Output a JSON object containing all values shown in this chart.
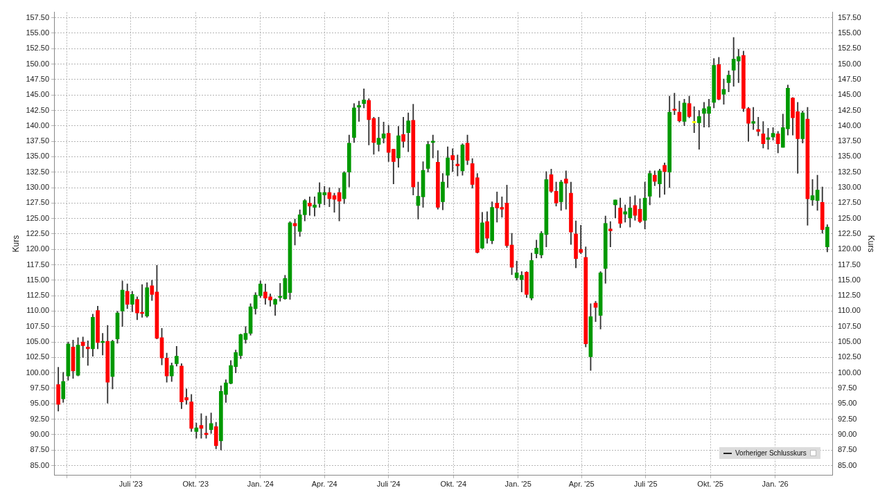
{
  "chart_data": {
    "type": "candlestick",
    "ylabel": "Kurs",
    "y2label": "Kurs",
    "x": [
      "2023-03-20",
      "2023-03-27",
      "2023-04-03",
      "2023-04-10",
      "2023-04-17",
      "2023-04-24",
      "2023-05-01",
      "2023-05-08",
      "2023-05-15",
      "2023-05-22",
      "2023-05-29",
      "2023-06-05",
      "2023-06-12",
      "2023-06-19",
      "2023-06-26",
      "2023-07-03",
      "2023-07-10",
      "2023-07-17",
      "2023-07-24",
      "2023-07-31",
      "2023-08-07",
      "2023-08-14",
      "2023-08-21",
      "2023-08-28",
      "2023-09-04",
      "2023-09-11",
      "2023-09-18",
      "2023-09-25",
      "2023-10-02",
      "2023-10-09",
      "2023-10-16",
      "2023-10-23",
      "2023-10-30",
      "2023-11-06",
      "2023-11-13",
      "2023-11-20",
      "2023-11-27",
      "2023-12-04",
      "2023-12-11",
      "2023-12-18",
      "2023-12-25",
      "2024-01-01",
      "2024-01-08",
      "2024-01-15",
      "2024-01-22",
      "2024-01-29",
      "2024-02-05",
      "2024-02-12",
      "2024-02-19",
      "2024-02-26",
      "2024-03-04",
      "2024-03-11",
      "2024-03-18",
      "2024-03-25",
      "2024-04-01",
      "2024-04-08",
      "2024-04-15",
      "2024-04-22",
      "2024-04-29",
      "2024-05-06",
      "2024-05-13",
      "2024-05-20",
      "2024-05-27",
      "2024-06-03",
      "2024-06-10",
      "2024-06-17",
      "2024-06-24",
      "2024-07-01",
      "2024-07-08",
      "2024-07-15",
      "2024-07-22",
      "2024-07-29",
      "2024-08-05",
      "2024-08-12",
      "2024-08-19",
      "2024-08-26",
      "2024-09-02",
      "2024-09-09",
      "2024-09-16",
      "2024-09-23",
      "2024-09-30",
      "2024-10-07",
      "2024-10-14",
      "2024-10-21",
      "2024-10-28",
      "2024-11-04",
      "2024-11-11",
      "2024-11-18",
      "2024-11-25",
      "2024-12-02",
      "2024-12-09",
      "2024-12-16",
      "2024-12-23",
      "2024-12-30",
      "2025-01-06",
      "2025-01-13",
      "2025-01-20",
      "2025-01-27",
      "2025-02-03",
      "2025-02-10",
      "2025-02-17",
      "2025-02-24",
      "2025-03-03",
      "2025-03-10",
      "2025-03-17",
      "2025-03-24",
      "2025-03-31",
      "2025-04-07",
      "2025-04-14",
      "2025-04-21",
      "2025-04-28",
      "2025-05-05",
      "2025-05-12",
      "2025-05-19",
      "2025-05-26",
      "2025-06-02",
      "2025-06-09",
      "2025-06-16",
      "2025-06-23",
      "2025-06-30",
      "2025-07-07",
      "2025-07-14",
      "2025-07-21",
      "2025-07-28",
      "2025-08-04",
      "2025-08-11",
      "2025-08-18",
      "2025-08-25",
      "2025-09-01",
      "2025-09-08",
      "2025-09-15",
      "2025-09-22",
      "2025-09-29",
      "2025-10-06",
      "2025-10-13",
      "2025-10-20",
      "2025-10-27",
      "2025-11-03",
      "2025-11-10",
      "2025-11-17",
      "2025-11-24",
      "2025-12-01",
      "2025-12-08",
      "2025-12-15",
      "2025-12-22",
      "2025-12-29",
      "2026-01-05",
      "2026-01-12",
      "2026-01-19",
      "2026-01-26",
      "2026-02-02",
      "2026-02-09",
      "2026-02-16",
      "2026-02-23",
      "2026-03-02",
      "2026-03-09",
      "2026-03-16"
    ],
    "ohlc": [
      [
        98.1,
        100.9,
        93.8,
        94.9
      ],
      [
        95.8,
        100.1,
        95.2,
        98.6
      ],
      [
        99.5,
        105.0,
        98.8,
        104.7
      ],
      [
        104.2,
        105.3,
        99.1,
        100.3
      ],
      [
        99.6,
        105.7,
        99.5,
        104.5
      ],
      [
        105.0,
        105.8,
        102.5,
        104.4
      ],
      [
        104.2,
        105.2,
        101.2,
        103.9
      ],
      [
        103.9,
        109.5,
        102.7,
        109.0
      ],
      [
        110.1,
        110.8,
        103.9,
        104.9
      ],
      [
        104.9,
        106.4,
        102.9,
        105.1
      ],
      [
        105.1,
        107.7,
        95.1,
        98.5
      ],
      [
        99.4,
        105.3,
        97.4,
        105.1
      ],
      [
        105.5,
        110.0,
        104.8,
        109.7
      ],
      [
        110.0,
        114.9,
        107.5,
        113.4
      ],
      [
        113.2,
        114.4,
        110.4,
        111.1
      ],
      [
        111.1,
        113.2,
        109.9,
        112.7
      ],
      [
        111.9,
        112.3,
        108.6,
        109.7
      ],
      [
        109.8,
        114.3,
        109.0,
        109.6
      ],
      [
        109.2,
        114.6,
        109.0,
        113.8
      ],
      [
        114.1,
        115.0,
        111.7,
        112.7
      ],
      [
        113.1,
        117.4,
        105.5,
        105.6
      ],
      [
        105.7,
        107.2,
        101.3,
        102.4
      ],
      [
        102.4,
        103.2,
        98.5,
        99.5
      ],
      [
        99.5,
        101.6,
        98.6,
        101.2
      ],
      [
        101.5,
        104.3,
        101.1,
        102.7
      ],
      [
        101.1,
        101.5,
        94.2,
        95.3
      ],
      [
        96.0,
        97.4,
        94.9,
        95.6
      ],
      [
        95.3,
        96.5,
        90.5,
        91.0
      ],
      [
        90.5,
        91.9,
        89.4,
        91.1
      ],
      [
        91.5,
        93.4,
        89.4,
        91.0
      ],
      [
        90.2,
        93.0,
        89.4,
        90.0
      ],
      [
        90.8,
        93.5,
        90.2,
        91.8
      ],
      [
        91.3,
        92.0,
        87.7,
        88.2
      ],
      [
        89.0,
        97.9,
        87.5,
        97.0
      ],
      [
        96.5,
        98.9,
        95.2,
        98.4
      ],
      [
        98.3,
        102.0,
        98.2,
        101.2
      ],
      [
        101.0,
        103.7,
        100.0,
        103.3
      ],
      [
        102.8,
        106.3,
        102.3,
        106.2
      ],
      [
        105.4,
        107.5,
        104.8,
        106.4
      ],
      [
        106.4,
        111.2,
        106.1,
        110.7
      ],
      [
        110.4,
        113.0,
        109.5,
        112.6
      ],
      [
        112.5,
        114.9,
        112.2,
        114.4
      ],
      [
        113.1,
        114.4,
        111.1,
        112.1
      ],
      [
        112.3,
        112.8,
        110.8,
        111.8
      ],
      [
        111.1,
        112.0,
        109.3,
        111.9
      ],
      [
        112.2,
        114.5,
        111.6,
        112.4
      ],
      [
        112.0,
        115.8,
        111.9,
        115.3
      ],
      [
        113.0,
        124.5,
        111.9,
        124.3
      ],
      [
        124.2,
        124.9,
        120.7,
        123.8
      ],
      [
        122.9,
        126.4,
        122.1,
        125.6
      ],
      [
        125.6,
        128.1,
        124.6,
        127.9
      ],
      [
        127.5,
        128.5,
        125.5,
        127.0
      ],
      [
        126.8,
        128.5,
        125.4,
        127.2
      ],
      [
        127.4,
        130.8,
        126.8,
        129.2
      ],
      [
        128.8,
        130.2,
        127.2,
        129.2
      ],
      [
        129.2,
        130.0,
        126.9,
        128.2
      ],
      [
        128.7,
        129.1,
        126.0,
        128.1
      ],
      [
        129.2,
        129.9,
        124.6,
        127.8
      ],
      [
        128.2,
        132.6,
        127.4,
        132.4
      ],
      [
        132.5,
        138.5,
        130.1,
        137.2
      ],
      [
        138.1,
        143.6,
        137.3,
        142.9
      ],
      [
        143.0,
        144.0,
        140.7,
        143.3
      ],
      [
        143.6,
        146.0,
        142.9,
        144.2
      ],
      [
        144.1,
        144.4,
        136.9,
        141.0
      ],
      [
        141.2,
        141.4,
        135.4,
        137.3
      ],
      [
        137.0,
        141.4,
        135.9,
        138.0
      ],
      [
        138.0,
        140.6,
        137.2,
        138.7
      ],
      [
        138.8,
        140.1,
        134.2,
        135.7
      ],
      [
        136.2,
        136.2,
        130.6,
        134.2
      ],
      [
        134.8,
        139.9,
        133.3,
        138.4
      ],
      [
        138.6,
        141.4,
        136.5,
        137.5
      ],
      [
        138.9,
        142.1,
        135.8,
        140.8
      ],
      [
        140.9,
        143.5,
        128.8,
        130.1
      ],
      [
        127.1,
        130.9,
        124.9,
        128.6
      ],
      [
        128.5,
        134.2,
        126.8,
        132.8
      ],
      [
        133.1,
        137.5,
        132.5,
        137.0
      ],
      [
        137.3,
        138.5,
        134.8,
        137.5
      ],
      [
        134.1,
        136.0,
        126.5,
        126.8
      ],
      [
        127.7,
        132.3,
        126.4,
        130.9
      ],
      [
        132.0,
        136.6,
        130.0,
        134.8
      ],
      [
        135.2,
        136.3,
        132.6,
        134.5
      ],
      [
        133.8,
        135.3,
        131.9,
        133.5
      ],
      [
        132.7,
        137.1,
        132.0,
        136.9
      ],
      [
        137.2,
        138.5,
        133.7,
        134.4
      ],
      [
        133.9,
        134.7,
        129.9,
        130.5
      ],
      [
        131.6,
        132.3,
        119.4,
        119.5
      ],
      [
        120.2,
        126.0,
        120.1,
        124.3
      ],
      [
        124.5,
        126.1,
        121.0,
        121.8
      ],
      [
        121.4,
        127.7,
        120.9,
        126.8
      ],
      [
        127.5,
        129.3,
        124.4,
        126.7
      ],
      [
        126.8,
        128.5,
        125.2,
        126.5
      ],
      [
        127.5,
        130.4,
        120.3,
        120.6
      ],
      [
        120.7,
        122.6,
        115.9,
        117.1
      ],
      [
        115.4,
        118.1,
        115.0,
        116.2
      ],
      [
        115.1,
        116.4,
        113.1,
        115.8
      ],
      [
        116.3,
        116.4,
        112.2,
        112.7
      ],
      [
        112.1,
        119.4,
        111.8,
        118.2
      ],
      [
        119.3,
        121.5,
        118.6,
        120.2
      ],
      [
        119.1,
        122.9,
        118.6,
        122.6
      ],
      [
        122.4,
        132.6,
        120.4,
        131.3
      ],
      [
        132.1,
        133.0,
        129.2,
        129.4
      ],
      [
        129.4,
        130.9,
        127.0,
        127.5
      ],
      [
        127.7,
        131.2,
        126.3,
        130.9
      ],
      [
        131.4,
        132.7,
        126.5,
        130.7
      ],
      [
        129.1,
        130.9,
        120.8,
        122.8
      ],
      [
        122.5,
        124.6,
        117.0,
        118.5
      ],
      [
        120.0,
        123.9,
        119.3,
        119.5
      ],
      [
        118.7,
        120.4,
        104.2,
        104.7
      ],
      [
        102.6,
        111.2,
        100.4,
        109.1
      ],
      [
        111.3,
        111.6,
        108.3,
        110.6
      ],
      [
        109.3,
        116.4,
        107.1,
        116.2
      ],
      [
        116.9,
        125.4,
        114.5,
        124.2
      ],
      [
        123.3,
        124.5,
        120.4,
        123.0
      ],
      [
        127.2,
        128.0,
        125.1,
        128.0
      ],
      [
        126.7,
        128.3,
        123.5,
        124.2
      ],
      [
        125.7,
        127.2,
        124.4,
        126.1
      ],
      [
        125.1,
        128.5,
        123.6,
        126.7
      ],
      [
        127.1,
        128.7,
        124.7,
        125.5
      ],
      [
        126.5,
        128.2,
        124.3,
        124.5
      ],
      [
        124.7,
        130.9,
        123.3,
        128.3
      ],
      [
        128.6,
        132.7,
        127.2,
        132.3
      ],
      [
        132.0,
        132.7,
        130.3,
        131.0
      ],
      [
        130.6,
        133.0,
        128.4,
        132.7
      ],
      [
        133.6,
        134.0,
        128.9,
        132.6
      ],
      [
        132.5,
        144.8,
        130.0,
        142.2
      ],
      [
        142.7,
        145.3,
        141.8,
        142.5
      ],
      [
        142.2,
        144.0,
        140.6,
        140.8
      ],
      [
        140.7,
        144.3,
        140.0,
        143.7
      ],
      [
        143.6,
        144.8,
        141.3,
        141.5
      ],
      [
        140.5,
        143.1,
        138.9,
        140.5
      ],
      [
        140.5,
        142.5,
        136.2,
        141.5
      ],
      [
        142.0,
        143.8,
        139.8,
        142.8
      ],
      [
        142.0,
        144.3,
        139.8,
        143.1
      ],
      [
        143.8,
        150.9,
        142.9,
        149.8
      ],
      [
        149.9,
        151.1,
        144.2,
        144.3
      ],
      [
        145.1,
        147.6,
        143.5,
        145.9
      ],
      [
        147.0,
        148.9,
        145.5,
        148.2
      ],
      [
        149.0,
        154.3,
        146.4,
        150.8
      ],
      [
        150.5,
        152.4,
        147.0,
        151.2
      ],
      [
        151.4,
        152.1,
        142.3,
        142.8
      ],
      [
        142.8,
        143.0,
        137.5,
        140.4
      ],
      [
        140.4,
        143.0,
        139.4,
        140.7
      ],
      [
        139.4,
        141.4,
        138.4,
        139.1
      ],
      [
        138.7,
        140.7,
        136.4,
        137.1
      ],
      [
        137.8,
        139.6,
        136.2,
        138.1
      ],
      [
        138.2,
        139.7,
        137.7,
        138.8
      ],
      [
        138.7,
        139.1,
        135.6,
        137.1
      ],
      [
        136.5,
        141.9,
        136.5,
        139.7
      ],
      [
        139.5,
        146.6,
        138.5,
        146.1
      ],
      [
        144.5,
        144.6,
        138.5,
        141.3
      ],
      [
        142.3,
        143.8,
        132.3,
        137.9
      ],
      [
        137.9,
        142.4,
        137.2,
        142.1
      ],
      [
        141.1,
        143.0,
        123.9,
        128.2
      ],
      [
        128.0,
        131.3,
        127.1,
        128.7
      ],
      [
        127.9,
        132.0,
        126.3,
        129.6
      ],
      [
        127.6,
        130.1,
        122.6,
        123.2
      ],
      [
        120.4,
        124.0,
        119.6,
        123.6
      ]
    ],
    "colors": [
      "#ff0000",
      "#009900",
      "#009900",
      "#ff0000",
      "#009900",
      "#ff0000",
      "#ff0000",
      "#009900",
      "#ff0000",
      "#009900",
      "#ff0000",
      "#009900",
      "#009900",
      "#009900",
      "#ff0000",
      "#009900",
      "#ff0000",
      "#ff0000",
      "#009900",
      "#ff0000",
      "#ff0000",
      "#ff0000",
      "#ff0000",
      "#009900",
      "#009900",
      "#ff0000",
      "#ff0000",
      "#ff0000",
      "#009900",
      "#ff0000",
      "#ff0000",
      "#009900",
      "#ff0000",
      "#009900",
      "#009900",
      "#009900",
      "#009900",
      "#009900",
      "#009900",
      "#009900",
      "#009900",
      "#009900",
      "#ff0000",
      "#ff0000",
      "#009900",
      "#009900",
      "#009900",
      "#009900",
      "#ff0000",
      "#009900",
      "#009900",
      "#ff0000",
      "#009900",
      "#009900",
      "#009900",
      "#ff0000",
      "#ff0000",
      "#ff0000",
      "#009900",
      "#009900",
      "#009900",
      "#009900",
      "#009900",
      "#ff0000",
      "#ff0000",
      "#009900",
      "#009900",
      "#ff0000",
      "#ff0000",
      "#009900",
      "#ff0000",
      "#009900",
      "#ff0000",
      "#009900",
      "#009900",
      "#009900",
      "#009900",
      "#ff0000",
      "#009900",
      "#009900",
      "#ff0000",
      "#ff0000",
      "#009900",
      "#ff0000",
      "#ff0000",
      "#ff0000",
      "#009900",
      "#ff0000",
      "#009900",
      "#ff0000",
      "#ff0000",
      "#ff0000",
      "#ff0000",
      "#009900",
      "#009900",
      "#ff0000",
      "#009900",
      "#009900",
      "#009900",
      "#009900",
      "#ff0000",
      "#ff0000",
      "#009900",
      "#ff0000",
      "#ff0000",
      "#ff0000",
      "#ff0000",
      "#ff0000",
      "#009900",
      "#ff0000",
      "#009900",
      "#009900",
      "#ff0000",
      "#009900",
      "#ff0000",
      "#009900",
      "#009900",
      "#ff0000",
      "#ff0000",
      "#009900",
      "#009900",
      "#ff0000",
      "#009900",
      "#ff0000",
      "#009900",
      "#ff0000",
      "#ff0000",
      "#009900",
      "#ff0000",
      "#ffff00",
      "#009900",
      "#009900",
      "#009900",
      "#009900",
      "#ff0000",
      "#009900",
      "#009900",
      "#009900",
      "#009900",
      "#ff0000",
      "#ff0000",
      "#009900",
      "#ff0000",
      "#ff0000",
      "#009900",
      "#009900",
      "#ff0000",
      "#009900",
      "#009900",
      "#ff0000",
      "#ff0000",
      "#009900",
      "#ff0000",
      "#009900",
      "#009900",
      "#ff0000",
      "#009900"
    ],
    "xlim": [
      "2023-03-14",
      "2026-03-24"
    ],
    "xticks": [
      {
        "value": "2023-04-01",
        "label": null
      },
      {
        "value": "2023-07-01",
        "label": "Juli '23"
      },
      {
        "value": "2023-10-01",
        "label": "Okt. '23"
      },
      {
        "value": "2024-01-01",
        "label": "Jan. '24"
      },
      {
        "value": "2024-04-01",
        "label": "Apr. '24"
      },
      {
        "value": "2024-07-01",
        "label": "Juli '24"
      },
      {
        "value": "2024-10-01",
        "label": "Okt. '24"
      },
      {
        "value": "2025-01-01",
        "label": "Jan. '25"
      },
      {
        "value": "2025-04-01",
        "label": "Apr. '25"
      },
      {
        "value": "2025-07-01",
        "label": "Juli '25"
      },
      {
        "value": "2025-10-01",
        "label": "Okt. '25"
      },
      {
        "value": "2026-01-01",
        "label": "Jan. '26"
      }
    ],
    "ylim": [
      83.4,
      158.4
    ],
    "yticks": [
      {
        "value": 85,
        "label": "85.00"
      },
      {
        "value": 87.5,
        "label": "87.50"
      },
      {
        "value": 90,
        "label": "90.00"
      },
      {
        "value": 92.5,
        "label": "92.50"
      },
      {
        "value": 95,
        "label": "95.00"
      },
      {
        "value": 97.5,
        "label": "97.50"
      },
      {
        "value": 100,
        "label": "100.00"
      },
      {
        "value": 102.5,
        "label": "102.50"
      },
      {
        "value": 105,
        "label": "105.00"
      },
      {
        "value": 107.5,
        "label": "107.50"
      },
      {
        "value": 110,
        "label": "110.00"
      },
      {
        "value": 112.5,
        "label": "112.50"
      },
      {
        "value": 115,
        "label": "115.00"
      },
      {
        "value": 117.5,
        "label": "117.50"
      },
      {
        "value": 120,
        "label": "120.00"
      },
      {
        "value": 122.5,
        "label": "122.50"
      },
      {
        "value": 125,
        "label": "125.00"
      },
      {
        "value": 127.5,
        "label": "127.50"
      },
      {
        "value": 130,
        "label": "130.00"
      },
      {
        "value": 132.5,
        "label": "132.50"
      },
      {
        "value": 135,
        "label": "135.00"
      },
      {
        "value": 137.5,
        "label": "137.50"
      },
      {
        "value": 140,
        "label": "140.00"
      },
      {
        "value": 142.5,
        "label": "142.50"
      },
      {
        "value": 145,
        "label": "145.00"
      },
      {
        "value": 147.5,
        "label": "147.50"
      },
      {
        "value": 150,
        "label": "150.00"
      },
      {
        "value": 152.5,
        "label": "152.50"
      },
      {
        "value": 155,
        "label": "155.00"
      },
      {
        "value": 157.5,
        "label": "157.50"
      }
    ],
    "y2lim": [
      83.4,
      158.4
    ],
    "y2ticks": [
      {
        "value": 85,
        "label": "85.00"
      },
      {
        "value": 87.5,
        "label": "87.50"
      },
      {
        "value": 90,
        "label": "90.00"
      },
      {
        "value": 92.5,
        "label": "92.50"
      },
      {
        "value": 95,
        "label": "95.00"
      },
      {
        "value": 97.5,
        "label": "97.50"
      },
      {
        "value": 100,
        "label": "100.00"
      },
      {
        "value": 102.5,
        "label": "102.50"
      },
      {
        "value": 105,
        "label": "105.00"
      },
      {
        "value": 107.5,
        "label": "107.50"
      },
      {
        "value": 110,
        "label": "110.00"
      },
      {
        "value": 112.5,
        "label": "112.50"
      },
      {
        "value": 115,
        "label": "115.00"
      },
      {
        "value": 117.5,
        "label": "117.50"
      },
      {
        "value": 120,
        "label": "120.00"
      },
      {
        "value": 122.5,
        "label": "122.50"
      },
      {
        "value": 125,
        "label": "125.00"
      },
      {
        "value": 127.5,
        "label": "127.50"
      },
      {
        "value": 130,
        "label": "130.00"
      },
      {
        "value": 132.5,
        "label": "132.50"
      },
      {
        "value": 135,
        "label": "135.00"
      },
      {
        "value": 137.5,
        "label": "137.50"
      },
      {
        "value": 140,
        "label": "140.00"
      },
      {
        "value": 142.5,
        "label": "142.50"
      },
      {
        "value": 145,
        "label": "145.00"
      },
      {
        "value": 147.5,
        "label": "147.50"
      },
      {
        "value": 150,
        "label": "150.00"
      },
      {
        "value": 152.5,
        "label": "152.50"
      },
      {
        "value": 155,
        "label": "155.00"
      },
      {
        "value": 157.5,
        "label": "157.50"
      }
    ],
    "grid": true,
    "annotations": [
      "Vorheriger Schlusskurs"
    ]
  }
}
